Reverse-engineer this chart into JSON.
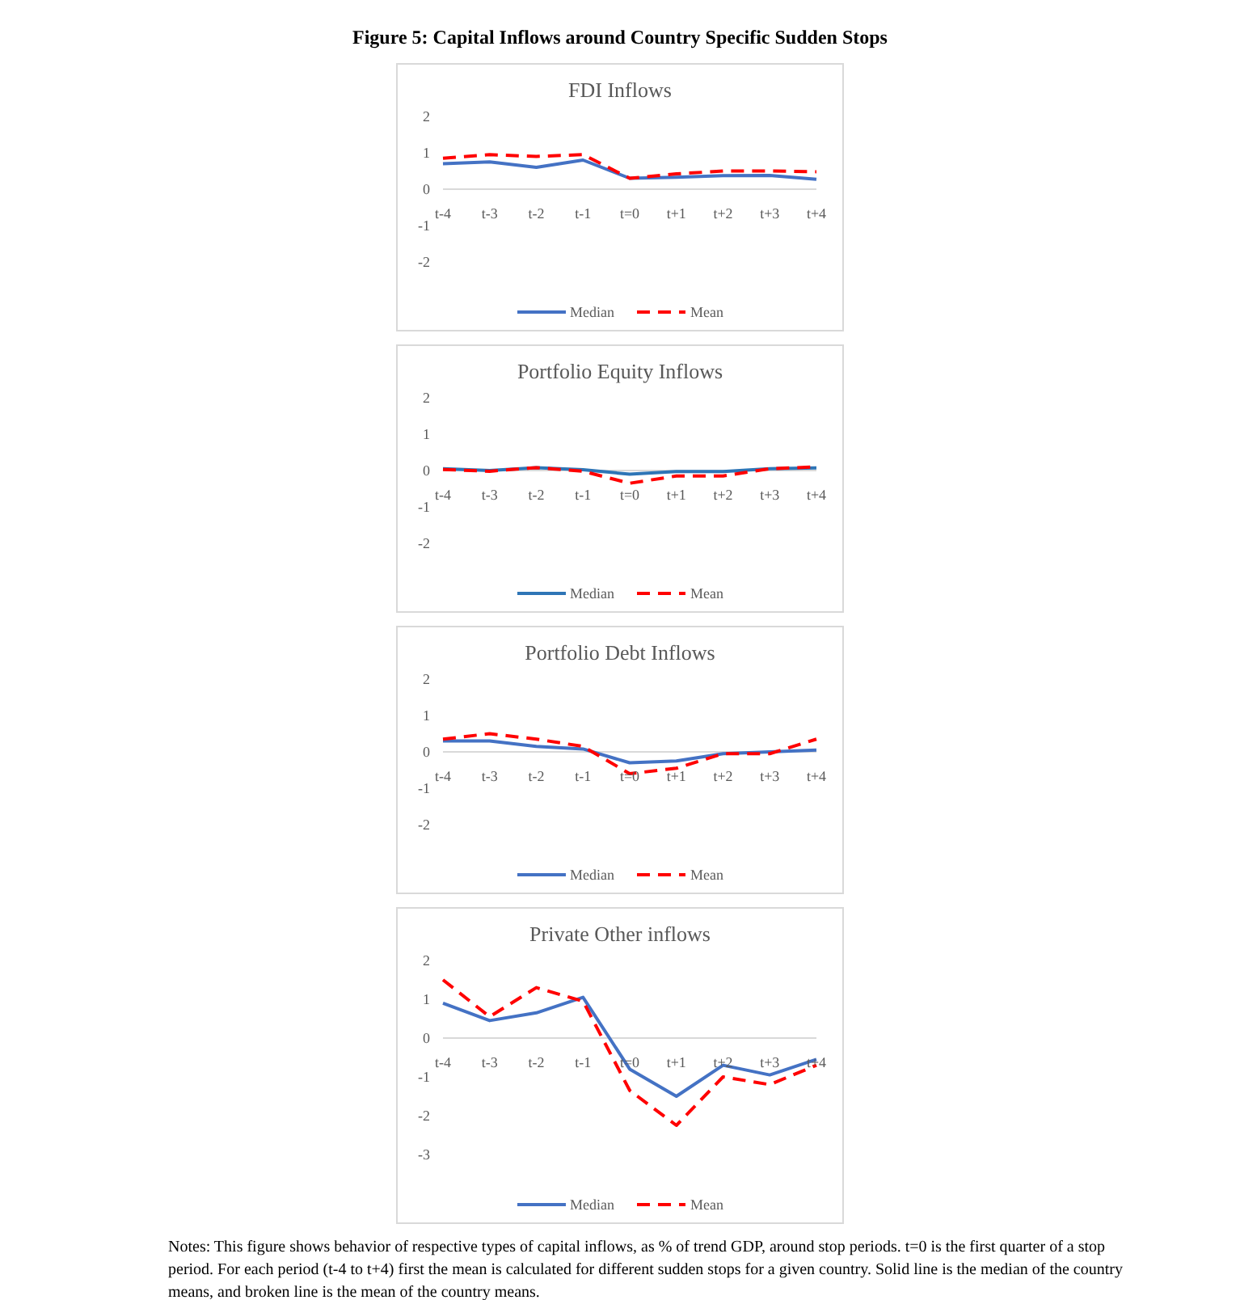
{
  "chart_data": [
    {
      "type": "line",
      "title": "FDI Inflows",
      "annotations": [
        "Figure 5: Capital Inflows around Country Specific Sudden Stops"
      ],
      "categories": [
        "t-4",
        "t-3",
        "t-2",
        "t-1",
        "t=0",
        "t+1",
        "t+2",
        "t+3",
        "t+4"
      ],
      "ylim": [
        -2,
        2
      ],
      "yticks": [
        -2,
        -1,
        0,
        1,
        2
      ],
      "grid": false,
      "legend": "bottom",
      "series": [
        {
          "name": "Median",
          "color": "#4472c4",
          "line_style": "solid",
          "values": [
            0.7,
            0.75,
            0.6,
            0.8,
            0.3,
            0.33,
            0.37,
            0.38,
            0.27
          ]
        },
        {
          "name": "Mean",
          "color": "#ff0000",
          "line_style": "dashed",
          "values": [
            0.85,
            0.95,
            0.9,
            0.95,
            0.3,
            0.42,
            0.5,
            0.5,
            0.48
          ]
        }
      ]
    },
    {
      "type": "line",
      "title": "Portfolio Equity Inflows",
      "categories": [
        "t-4",
        "t-3",
        "t-2",
        "t-1",
        "t=0",
        "t+1",
        "t+2",
        "t+3",
        "t+4"
      ],
      "ylim": [
        -2,
        2
      ],
      "yticks": [
        -2,
        -1,
        0,
        1,
        2
      ],
      "grid": false,
      "legend": "bottom",
      "series": [
        {
          "name": "Median",
          "color": "#2e75b6",
          "line_style": "solid",
          "values": [
            0.05,
            0,
            0.08,
            0.02,
            -0.1,
            -0.03,
            -0.03,
            0.05,
            0.07
          ]
        },
        {
          "name": "Mean",
          "color": "#ff0000",
          "line_style": "dashed",
          "values": [
            0.03,
            -0.02,
            0.08,
            -0.02,
            -0.35,
            -0.15,
            -0.15,
            0.05,
            0.1
          ]
        }
      ]
    },
    {
      "type": "line",
      "title": "Portfolio Debt Inflows",
      "categories": [
        "t-4",
        "t-3",
        "t-2",
        "t-1",
        "t=0",
        "t+1",
        "t+2",
        "t+3",
        "t+4"
      ],
      "ylim": [
        -2,
        2
      ],
      "yticks": [
        -2,
        -1,
        0,
        1,
        2
      ],
      "grid": false,
      "legend": "bottom",
      "series": [
        {
          "name": "Median",
          "color": "#4472c4",
          "line_style": "solid",
          "values": [
            0.3,
            0.3,
            0.15,
            0.08,
            -0.3,
            -0.25,
            -0.05,
            0,
            0.05
          ]
        },
        {
          "name": "Mean",
          "color": "#ff0000",
          "line_style": "dashed",
          "values": [
            0.35,
            0.5,
            0.35,
            0.15,
            -0.6,
            -0.45,
            -0.05,
            -0.05,
            0.35
          ]
        }
      ]
    },
    {
      "type": "line",
      "title": "Private Other inflows",
      "annotations": [
        "Notes: This figure shows behavior of respective types of capital inflows, as % of trend GDP, around stop periods. t=0 is the first quarter of a stop period. For each period (t-4 to t+4) first the mean is calculated for different sudden stops for a given country. Solid line is the median of the country means, and broken line is the mean of the country means."
      ],
      "categories": [
        "t-4",
        "t-3",
        "t-2",
        "t-1",
        "t=0",
        "t+1",
        "t+2",
        "t+3",
        "t+4"
      ],
      "ylim": [
        -3,
        2
      ],
      "yticks": [
        -3,
        -2,
        -1,
        0,
        1,
        2
      ],
      "grid": false,
      "legend": "bottom",
      "series": [
        {
          "name": "Median",
          "color": "#4472c4",
          "line_style": "solid",
          "values": [
            0.9,
            0.45,
            0.65,
            1.05,
            -0.8,
            -1.5,
            -0.7,
            -0.95,
            -0.55
          ]
        },
        {
          "name": "Mean",
          "color": "#ff0000",
          "line_style": "dashed",
          "values": [
            1.5,
            0.55,
            1.3,
            0.95,
            -1.35,
            -2.25,
            -1,
            -1.2,
            -0.7
          ]
        }
      ]
    }
  ]
}
